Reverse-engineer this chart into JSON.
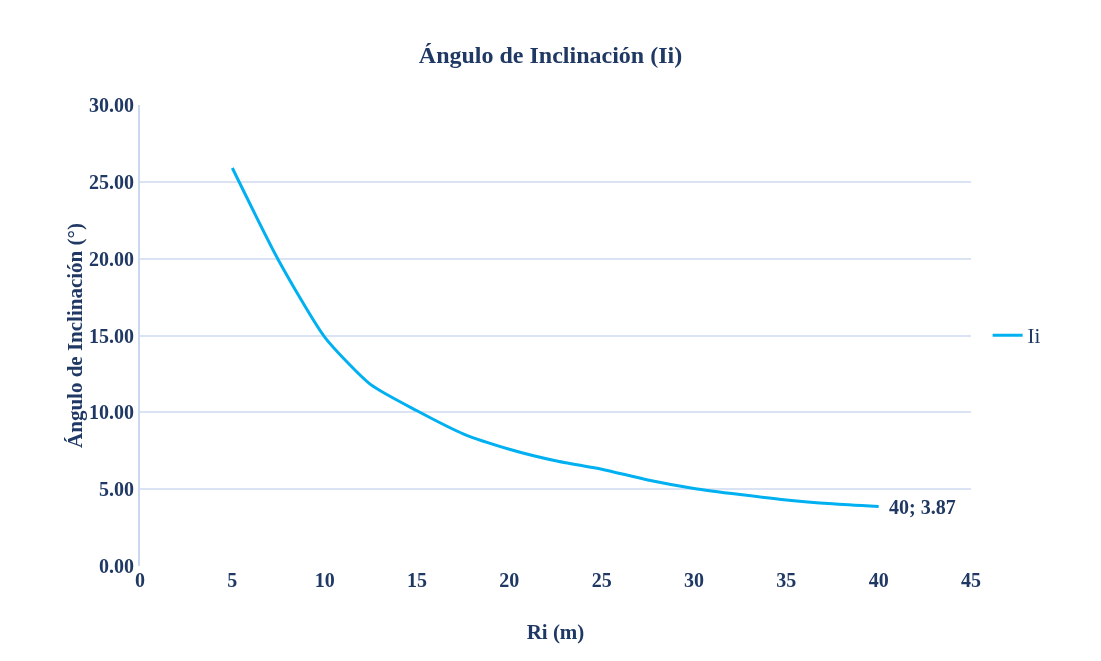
{
  "chart_data": {
    "type": "line",
    "title": "Ángulo de Inclinación (Ii)",
    "xlabel": "Ri (m)",
    "ylabel": "Ángulo de Inclinación (°)",
    "x": [
      5,
      7.5,
      10,
      12.5,
      15,
      17.5,
      20,
      22.5,
      25,
      27.5,
      30,
      32.5,
      35,
      37.5,
      40
    ],
    "series": [
      {
        "name": "Ii",
        "color": "#00b0f0",
        "values": [
          25.9,
          19.9,
          14.9,
          11.8,
          10.1,
          8.6,
          7.6,
          6.85,
          6.3,
          5.6,
          5.05,
          4.65,
          4.3,
          4.05,
          3.87
        ]
      }
    ],
    "annotations": [
      {
        "text": "40; 3.87",
        "x": 40,
        "y": 3.87
      }
    ],
    "xlim": [
      0,
      45
    ],
    "xticks": [
      0,
      5,
      10,
      15,
      20,
      25,
      30,
      35,
      40,
      45
    ],
    "ylim": [
      0,
      30
    ],
    "yticks": [
      {
        "value": 0,
        "label": "0.00"
      },
      {
        "value": 5,
        "label": "5.00"
      },
      {
        "value": 10,
        "label": "10.00"
      },
      {
        "value": 15,
        "label": "15.00"
      },
      {
        "value": 20,
        "label": "20.00"
      },
      {
        "value": 25,
        "label": "25.00"
      },
      {
        "value": 30,
        "label": "30.00"
      }
    ],
    "grid": "y",
    "legend": "right",
    "marker": "none",
    "line_style": "solid"
  }
}
